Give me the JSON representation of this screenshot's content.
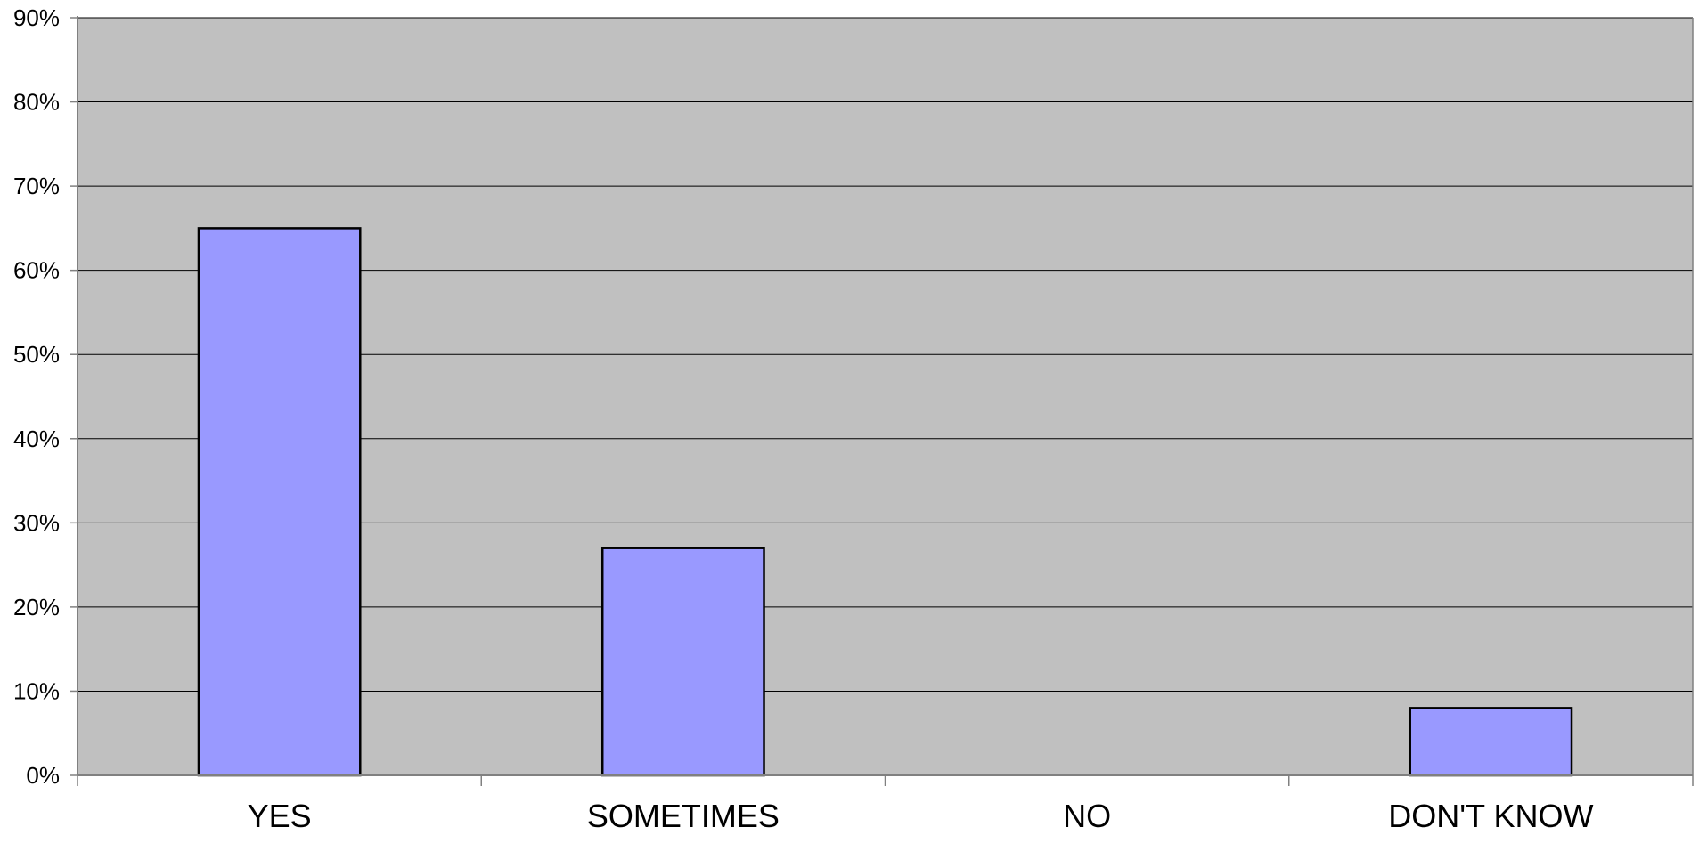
{
  "chart_data": {
    "type": "bar",
    "categories": [
      "YES",
      "SOMETIMES",
      "NO",
      "DON'T KNOW"
    ],
    "values": [
      65,
      27,
      0,
      8
    ],
    "y_tick_labels": [
      "0%",
      "10%",
      "20%",
      "30%",
      "40%",
      "50%",
      "60%",
      "70%",
      "80%",
      "90%"
    ],
    "ylim": [
      0,
      90
    ],
    "y_tick_step": 10,
    "grid": true,
    "legend": "none",
    "colors": {
      "bar_fill": "#9999ff",
      "bar_stroke": "#000000",
      "plot_background": "#c0c0c0",
      "gridline": "#000000",
      "axis": "#808080"
    }
  }
}
